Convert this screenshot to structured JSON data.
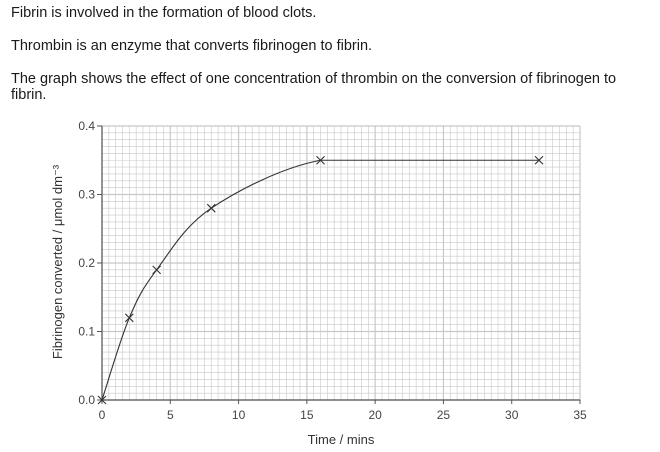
{
  "intro": {
    "line1": "Fibrin is involved in the formation of blood clots.",
    "line2": "Thrombin is an enzyme that converts fibrinogen to fibrin.",
    "line3": "The graph shows the effect of one concentration of thrombin on the conversion of fibrinogen to fibrin."
  },
  "chart_data": {
    "type": "line",
    "title": "",
    "xlabel": "Time / mins",
    "ylabel": "Fibrinogen converted / μmol dm⁻³",
    "xlim": [
      0,
      35
    ],
    "ylim": [
      0,
      0.4
    ],
    "x_ticks": [
      0,
      5,
      10,
      15,
      20,
      25,
      30,
      35
    ],
    "y_ticks": [
      "0.0",
      "0.1",
      "0.2",
      "0.3",
      "0.4"
    ],
    "grid": true,
    "series": [
      {
        "x": [
          0,
          2,
          4,
          8,
          16,
          32
        ],
        "y": [
          0,
          0.12,
          0.19,
          0.28,
          0.35,
          0.35
        ],
        "marker": "x",
        "color": "#333333"
      }
    ],
    "colors": {
      "grid": "#c8c8c8",
      "axis": "#555555",
      "line": "#333333"
    }
  }
}
